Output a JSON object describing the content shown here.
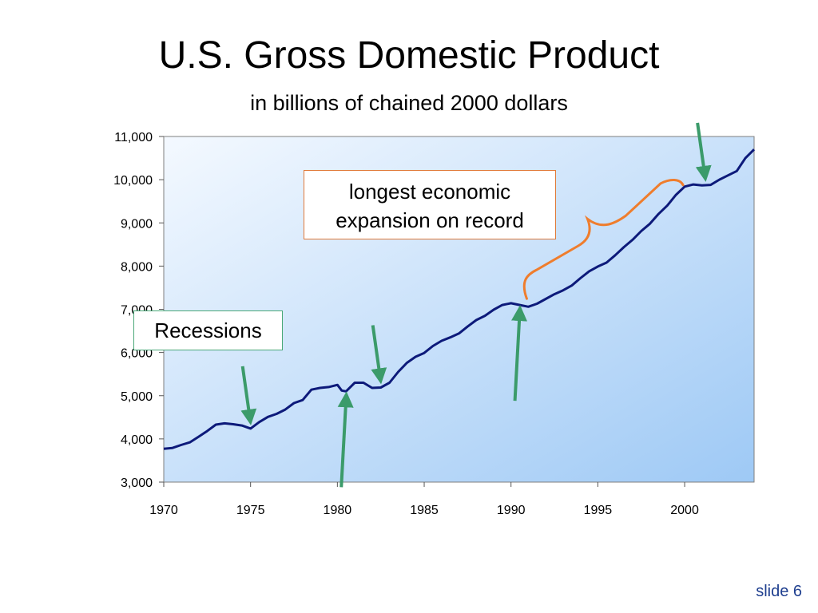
{
  "title": "U.S. Gross Domestic Product",
  "subtitle": "in billions of chained 2000 dollars",
  "callouts": {
    "expansion_line1": "longest economic",
    "expansion_line2": "expansion on record",
    "recessions": "Recessions"
  },
  "slide_label": "slide 6",
  "colors": {
    "line": "#0d1a7a",
    "arrow": "#3b9b6a",
    "brace": "#ef7d2d",
    "plot_gradient_start": "#f4f9ff",
    "plot_gradient_end": "#9ec9f5"
  },
  "annotations": {
    "recession_arrows": [
      {
        "label_year": 1975,
        "direction": "down"
      },
      {
        "label_year": 1980.5,
        "direction": "up"
      },
      {
        "label_year": 1982.5,
        "direction": "down"
      },
      {
        "label_year": 1990.5,
        "direction": "up"
      },
      {
        "label_year": 2001.2,
        "direction": "down"
      }
    ],
    "expansion_brace": {
      "start_year": 1991,
      "end_year": 2000
    }
  },
  "chart_data": {
    "type": "line",
    "title": "U.S. Gross Domestic Product",
    "subtitle": "in billions of chained 2000 dollars",
    "xlabel": "",
    "ylabel": "",
    "xlim": [
      1970,
      2004
    ],
    "ylim": [
      3000,
      11000
    ],
    "x_ticks": [
      1970,
      1975,
      1980,
      1985,
      1990,
      1995,
      2000
    ],
    "y_ticks": [
      3000,
      4000,
      5000,
      6000,
      7000,
      8000,
      9000,
      10000,
      11000
    ],
    "x_tick_labels": [
      "1970",
      "1975",
      "1980",
      "1985",
      "1990",
      "1995",
      "2000"
    ],
    "y_tick_labels": [
      "3,000",
      "4,000",
      "5,000",
      "6,000",
      "7,000",
      "8,000",
      "9,000",
      "10,000",
      "11,000"
    ],
    "grid": false,
    "series": [
      {
        "x": [
          1970,
          1970.5,
          1971,
          1971.5,
          1972,
          1972.5,
          1973,
          1973.5,
          1974,
          1974.5,
          1975,
          1975.5,
          1976,
          1976.5,
          1977,
          1977.5,
          1978,
          1978.5,
          1979,
          1979.5,
          1980,
          1980.25,
          1980.5,
          1981,
          1981.5,
          1982,
          1982.5,
          1983,
          1983.5,
          1984,
          1984.5,
          1985,
          1985.5,
          1986,
          1986.5,
          1987,
          1987.5,
          1988,
          1988.5,
          1989,
          1989.5,
          1990,
          1990.5,
          1991,
          1991.5,
          1992,
          1992.5,
          1993,
          1993.5,
          1994,
          1994.5,
          1995,
          1995.5,
          1996,
          1996.5,
          1997,
          1997.5,
          1998,
          1998.5,
          1999,
          1999.5,
          2000,
          2000.5,
          2001,
          2001.5,
          2002,
          2002.5,
          2003,
          2003.5,
          2004
        ],
        "values": [
          3770,
          3790,
          3860,
          3920,
          4050,
          4180,
          4330,
          4360,
          4340,
          4310,
          4240,
          4390,
          4510,
          4580,
          4680,
          4830,
          4900,
          5140,
          5180,
          5200,
          5250,
          5120,
          5100,
          5300,
          5300,
          5180,
          5190,
          5300,
          5550,
          5760,
          5900,
          5990,
          6150,
          6270,
          6350,
          6440,
          6600,
          6750,
          6850,
          6990,
          7100,
          7140,
          7100,
          7060,
          7130,
          7240,
          7350,
          7440,
          7550,
          7720,
          7880,
          7990,
          8080,
          8250,
          8440,
          8610,
          8810,
          8980,
          9210,
          9400,
          9650,
          9840,
          9890,
          9870,
          9880,
          10000,
          10100,
          10200,
          10500,
          10700
        ]
      }
    ]
  }
}
